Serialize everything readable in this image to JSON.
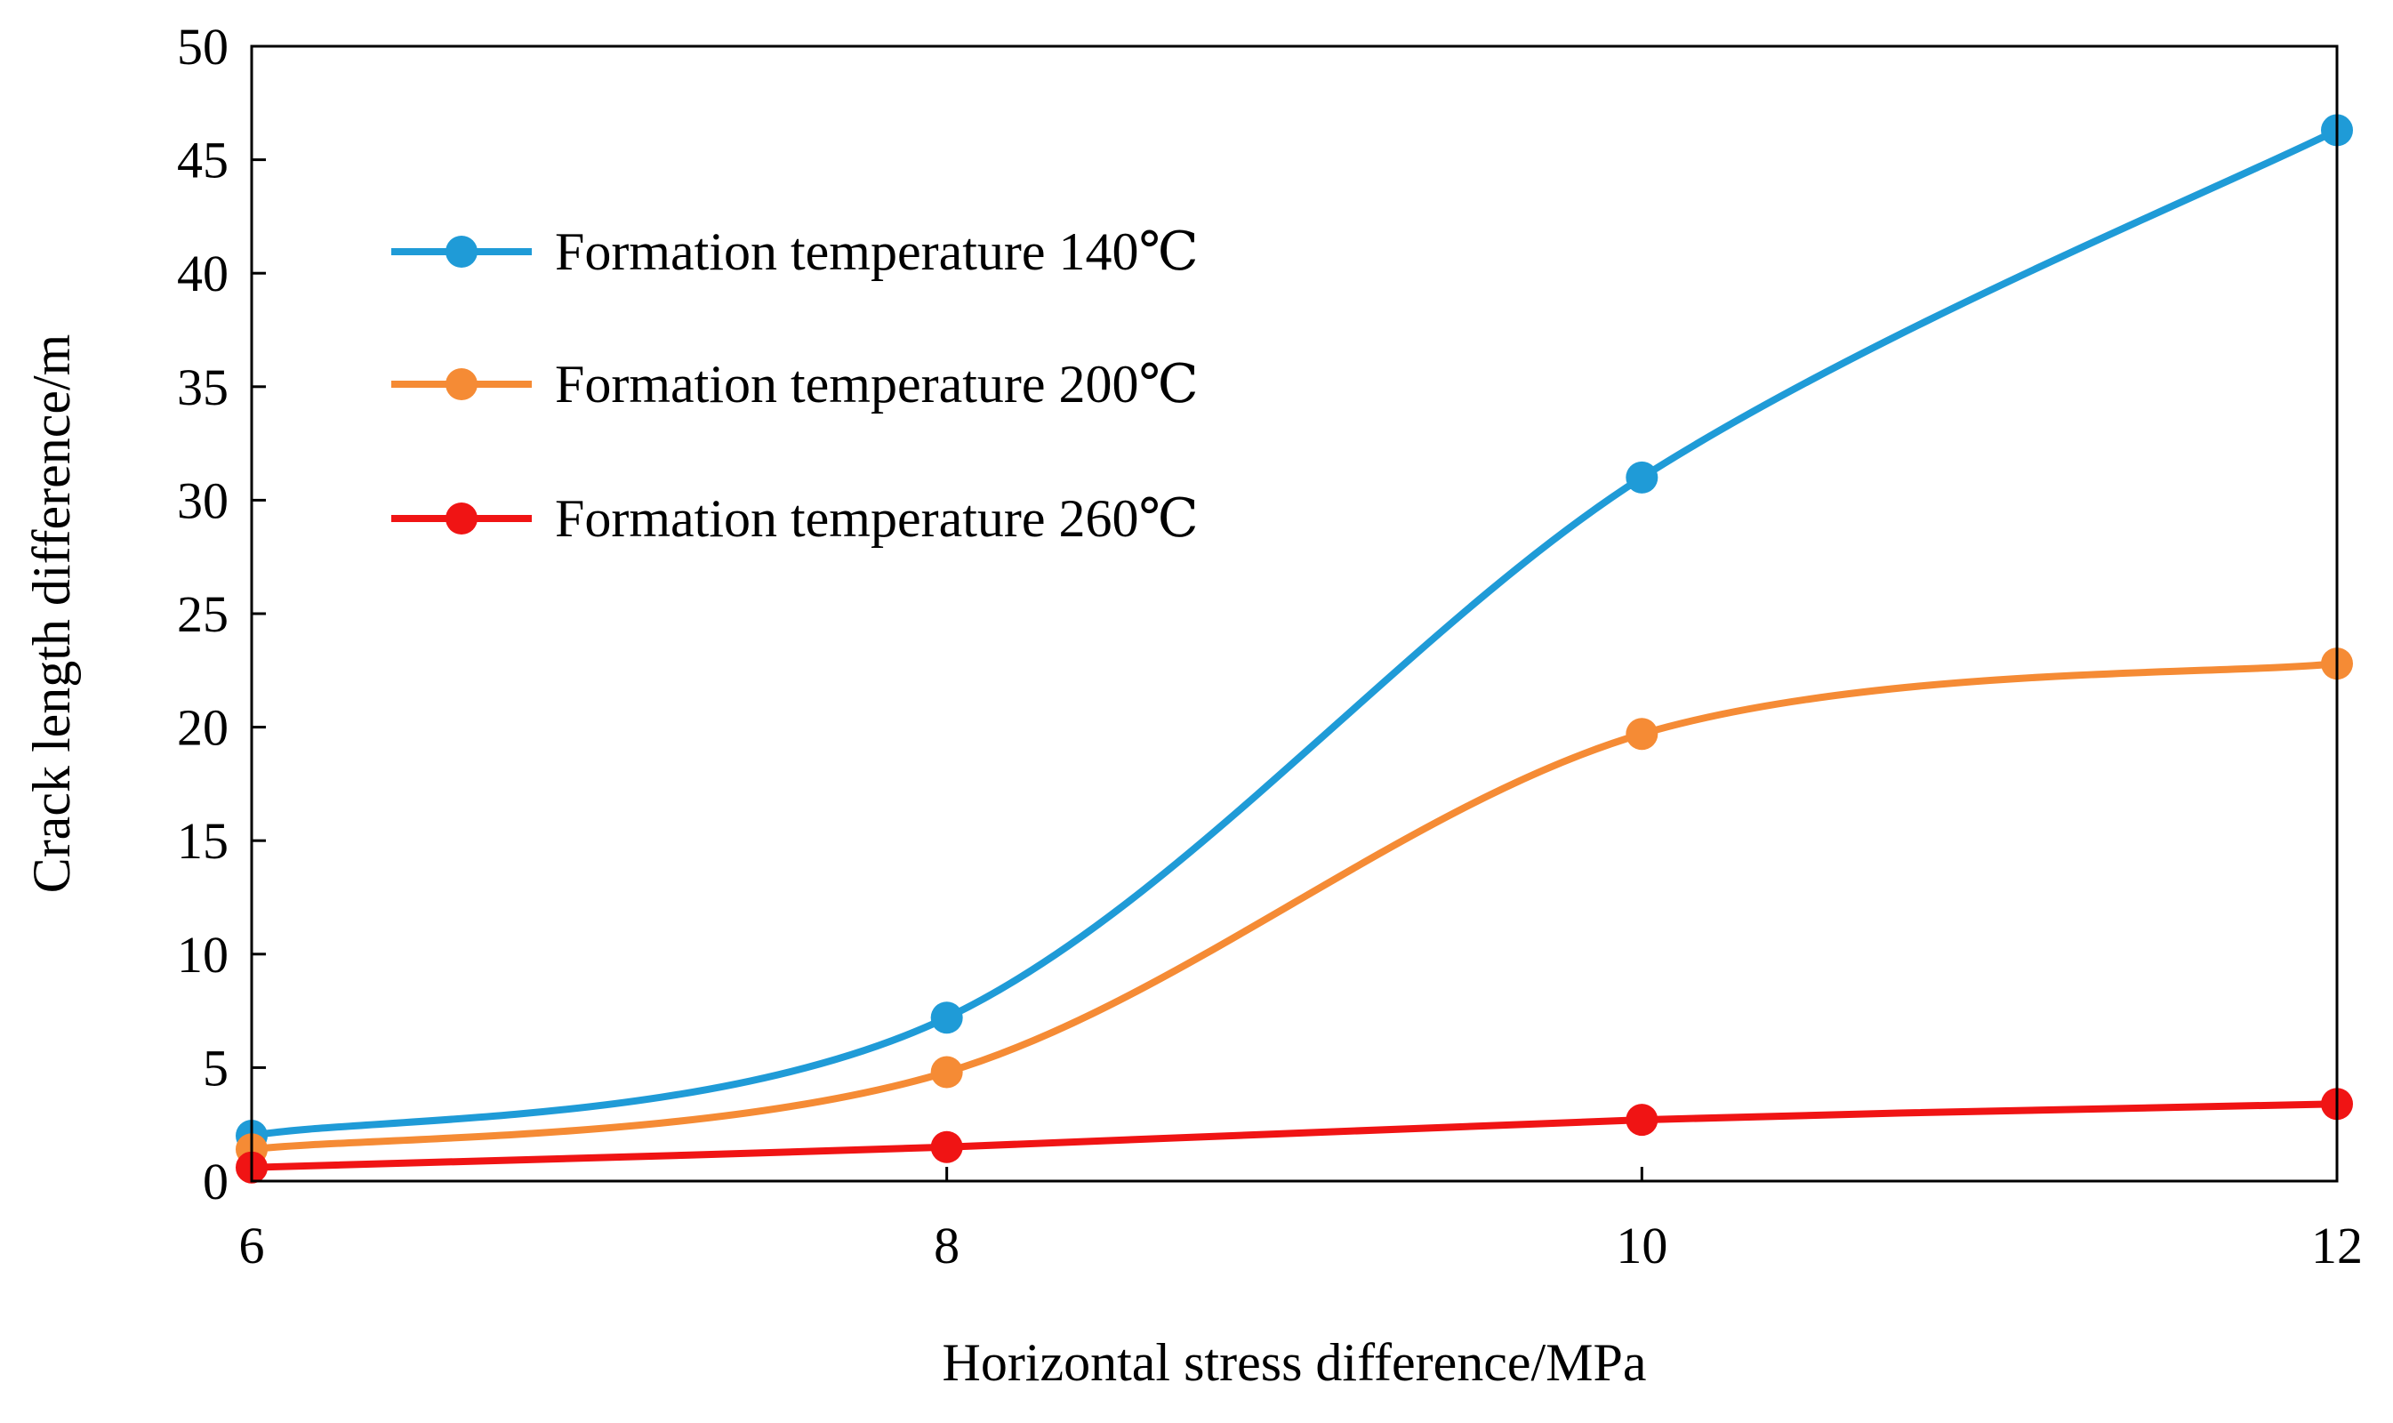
{
  "chart_data": {
    "type": "line",
    "title": "",
    "xlabel": "Horizontal stress difference/MPa",
    "ylabel": "Crack length difference/m",
    "xlim": [
      6,
      12
    ],
    "ylim": [
      0,
      50
    ],
    "x_ticks": [
      6,
      8,
      10,
      12
    ],
    "y_ticks": [
      0,
      5,
      10,
      15,
      20,
      25,
      30,
      35,
      40,
      45,
      50
    ],
    "grid": false,
    "smooth": true,
    "legend_position": "top-left",
    "series": [
      {
        "name": "Formation temperature 140℃",
        "color": "#1F9BD7",
        "x": [
          6,
          8,
          10,
          12
        ],
        "y": [
          2.0,
          7.2,
          31.0,
          46.3
        ]
      },
      {
        "name": "Formation temperature 200℃",
        "color": "#F58B35",
        "x": [
          6,
          8,
          10,
          12
        ],
        "y": [
          1.4,
          4.8,
          19.7,
          22.8
        ]
      },
      {
        "name": "Formation temperature 260℃",
        "color": "#F01414",
        "x": [
          6,
          8,
          10,
          12
        ],
        "y": [
          0.6,
          1.5,
          2.7,
          3.4
        ]
      }
    ]
  }
}
